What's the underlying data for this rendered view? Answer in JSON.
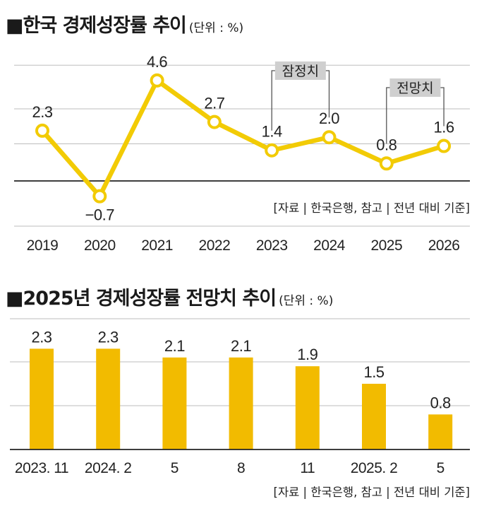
{
  "chart_data": [
    {
      "type": "line",
      "title": "■한국 경제성장률 추이",
      "unit": "(단위 : %)",
      "categories": [
        "2019",
        "2020",
        "2021",
        "2022",
        "2023",
        "2024",
        "2025",
        "2026"
      ],
      "values": [
        2.3,
        -0.7,
        4.6,
        2.7,
        1.4,
        2.0,
        0.8,
        1.6
      ],
      "value_labels": [
        "2.3",
        "−0.7",
        "4.6",
        "2.7",
        "1.4",
        "2.0",
        "0.8",
        "1.6"
      ],
      "ylim": [
        -1.6,
        5.6
      ],
      "gridlines": [
        5.3,
        3.3,
        1.7,
        0.0
      ],
      "annotations": [
        {
          "label": "잠정치",
          "category_range": [
            "2023",
            "2024"
          ]
        },
        {
          "label": "전망치",
          "category_range": [
            "2025",
            "2026"
          ]
        }
      ],
      "source": "[자료 | 한국은행, 참고 | 전년 대비 기준]",
      "color": "#f2cb05"
    },
    {
      "type": "bar",
      "title": "■2025년 경제성장률 전망치 추이",
      "unit": "(단위 : %)",
      "categories": [
        "2023. 11",
        "2024. 2",
        "5",
        "8",
        "11",
        "2025. 2",
        "5"
      ],
      "values": [
        2.3,
        2.3,
        2.1,
        2.1,
        1.9,
        1.5,
        0.8
      ],
      "value_labels": [
        "2.3",
        "2.3",
        "2.1",
        "2.1",
        "1.9",
        "1.5",
        "0.8"
      ],
      "ylim": [
        0,
        2.6
      ],
      "gridlines": [
        2.0,
        1.0
      ],
      "source": "[자료 | 한국은행, 참고 | 전년 대비 기준]",
      "color": "#f2bb00"
    }
  ]
}
